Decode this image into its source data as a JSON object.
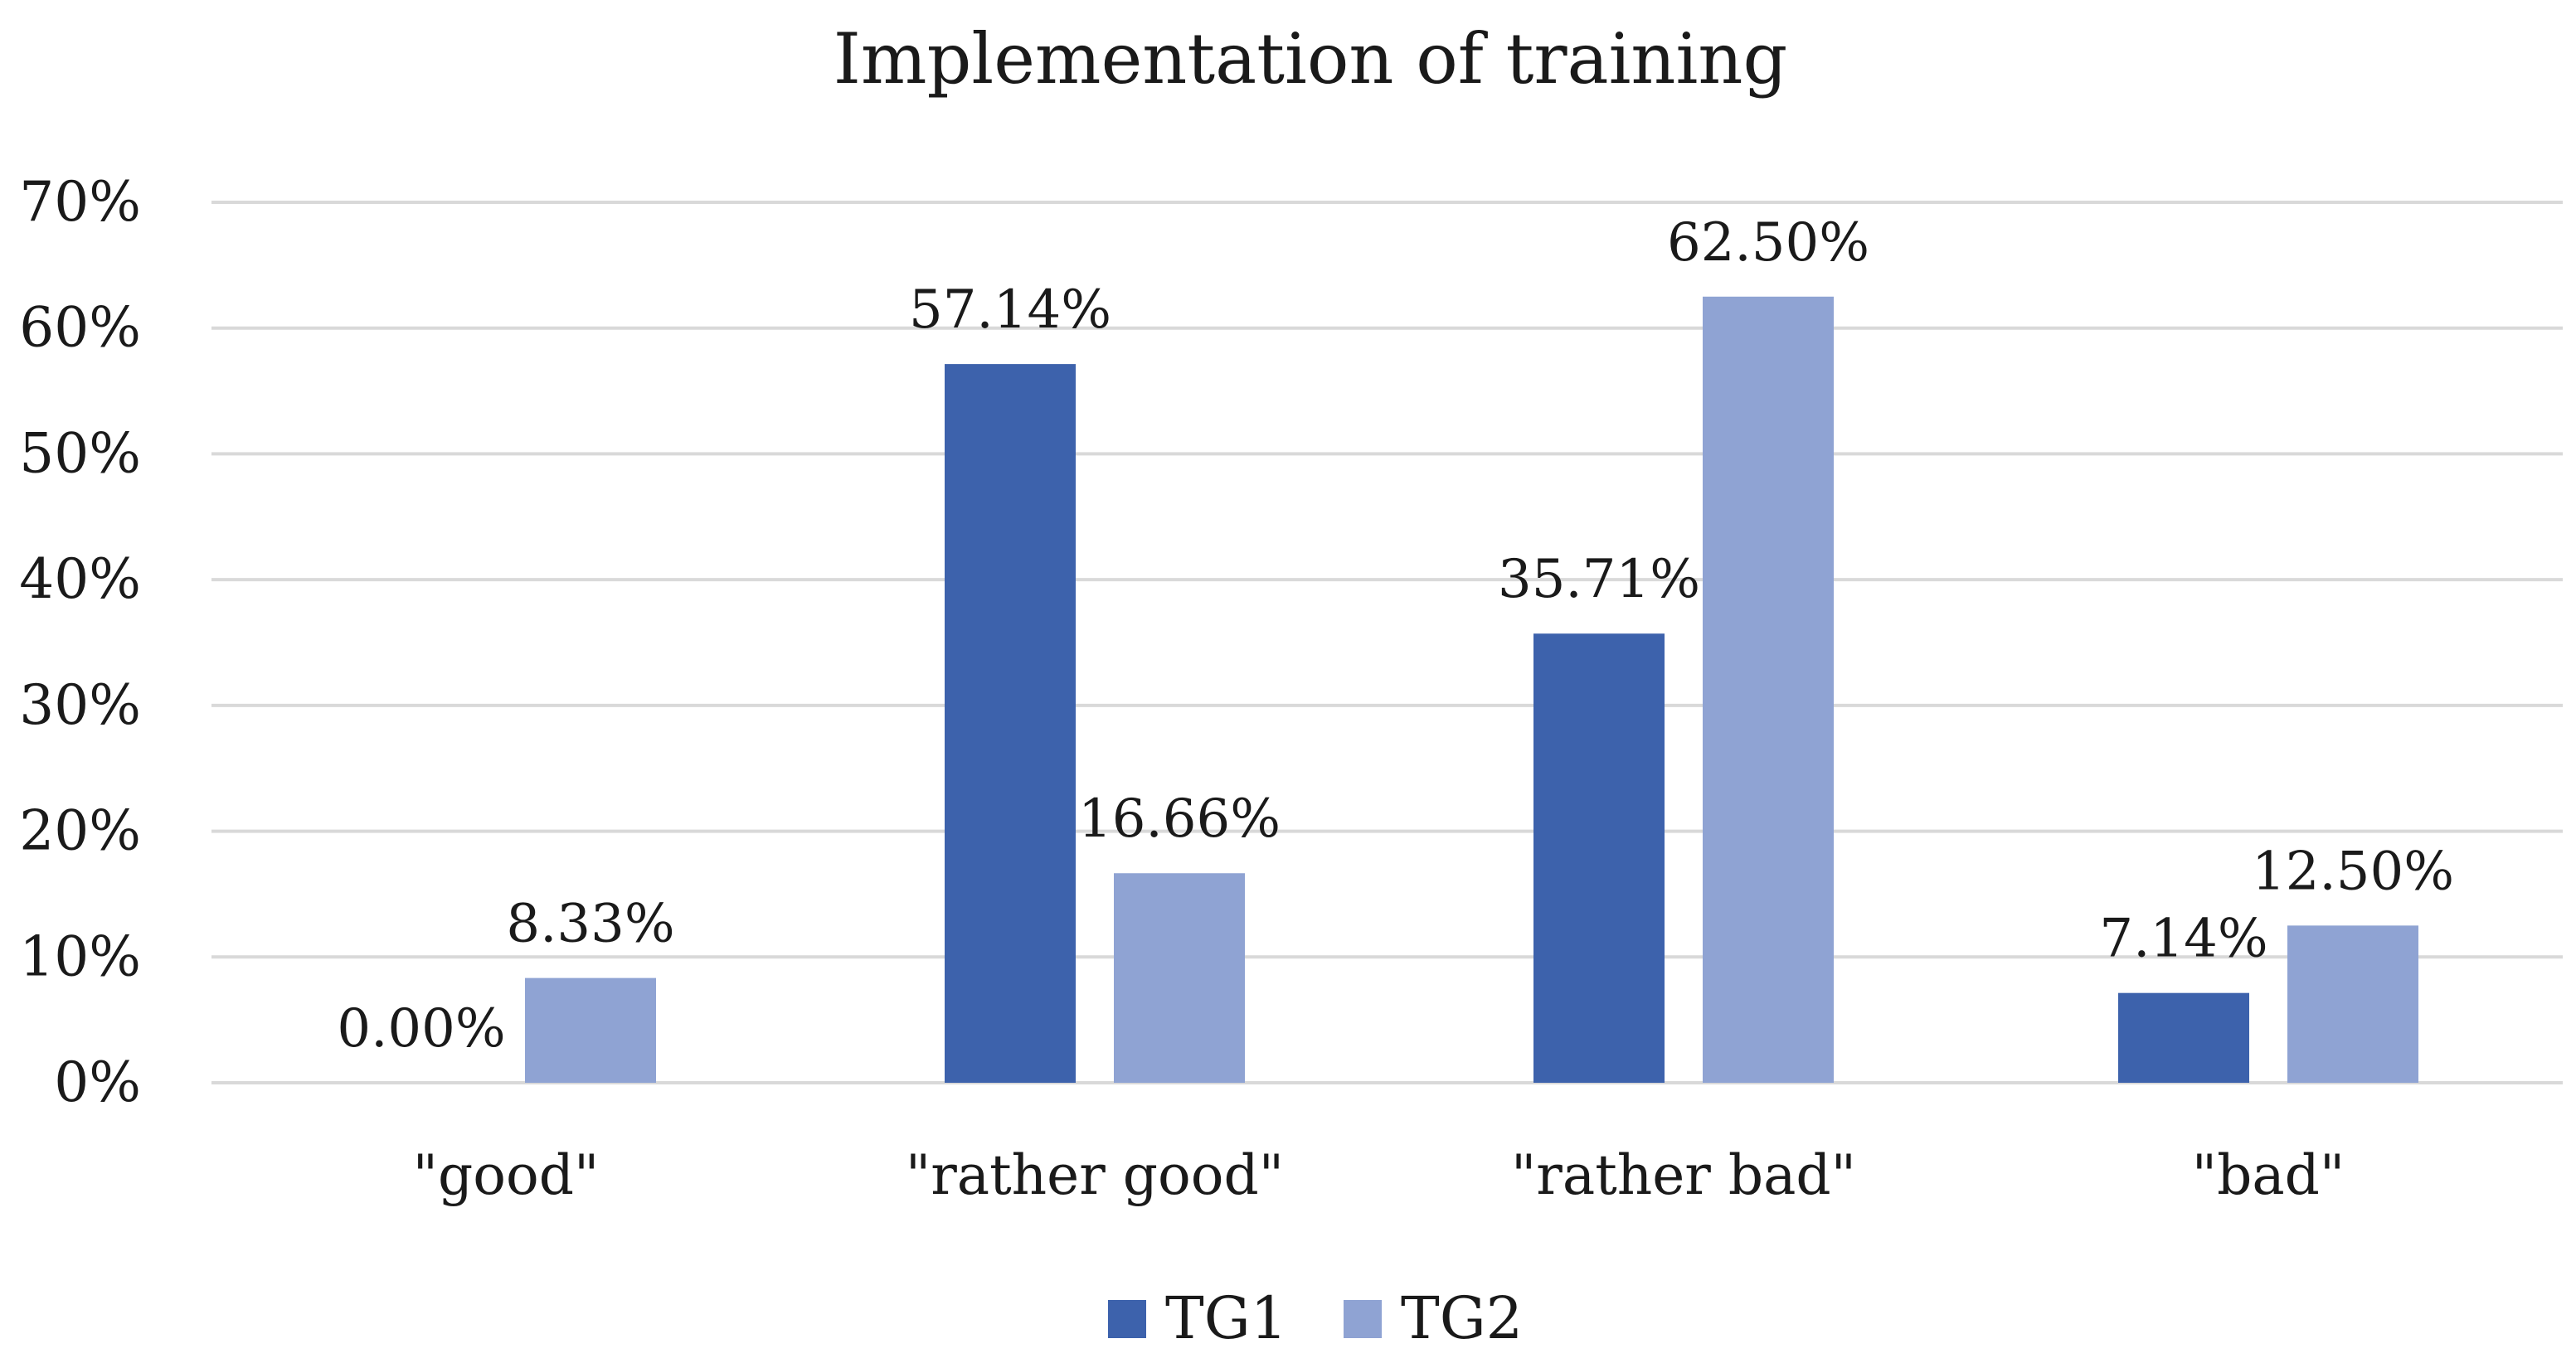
{
  "chart_data": {
    "type": "bar",
    "title": "Implementation of training",
    "xlabel": "",
    "ylabel": "",
    "categories": [
      "\"good\"",
      "\"rather good\"",
      "\"rather bad\"",
      "\"bad\""
    ],
    "series": [
      {
        "name": "TG1",
        "values": [
          0.0,
          57.14,
          35.71,
          7.14
        ],
        "labels": [
          "0.00%",
          "57.14%",
          "35.71%",
          "7.14%"
        ],
        "color": "#3d62ac"
      },
      {
        "name": "TG2",
        "values": [
          8.33,
          16.66,
          62.5,
          12.5
        ],
        "labels": [
          "8.33%",
          "16.66%",
          "62.50%",
          "12.50%"
        ],
        "color": "#8fa3d3"
      }
    ],
    "ylim": [
      0,
      70
    ],
    "yticks": [
      "0%",
      "10%",
      "20%",
      "30%",
      "40%",
      "50%",
      "60%",
      "70%"
    ],
    "grid": true,
    "legend_position": "bottom"
  }
}
